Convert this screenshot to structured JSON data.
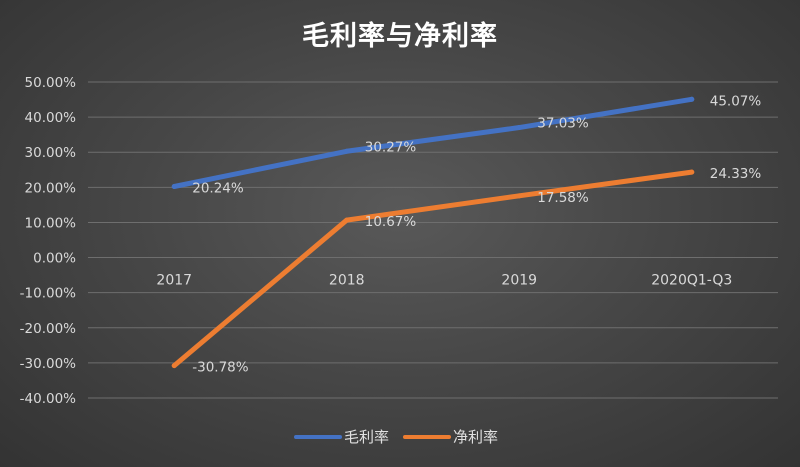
{
  "title": "毛利率与净利率",
  "chart_data": {
    "type": "line",
    "title": "毛利率与净利率",
    "categories": [
      "2017",
      "2018",
      "2019",
      "2020Q1-Q3"
    ],
    "series": [
      {
        "name": "毛利率",
        "values": [
          20.24,
          30.27,
          37.03,
          45.07
        ],
        "labels": [
          "20.24%",
          "30.27%",
          "37.03%",
          "45.07%"
        ],
        "color": "#4472C4"
      },
      {
        "name": "净利率",
        "values": [
          -30.78,
          10.67,
          17.58,
          24.33
        ],
        "labels": [
          "-30.78%",
          "10.67%",
          "17.58%",
          "24.33%"
        ],
        "color": "#ED7D31"
      }
    ],
    "ylim": [
      -40,
      50
    ],
    "y_ticks": [
      "-40.00%",
      "-30.00%",
      "-20.00%",
      "-10.00%",
      "0.00%",
      "10.00%",
      "20.00%",
      "30.00%",
      "40.00%",
      "50.00%"
    ],
    "grid": true,
    "legend": "bottom"
  }
}
